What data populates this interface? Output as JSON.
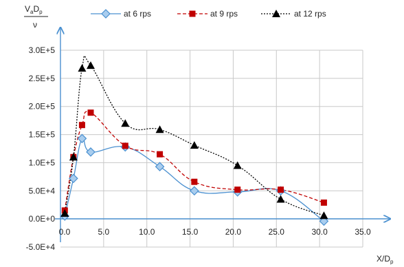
{
  "chart_data": {
    "type": "line",
    "x_axis": {
      "label_main": "X/D",
      "label_sub": "p",
      "ticks": [
        "0.0",
        "5.0",
        "10.0",
        "15.0",
        "20.0",
        "25.0",
        "30.0",
        "35.0"
      ],
      "range": [
        0,
        35
      ]
    },
    "y_axis": {
      "label_num": "V",
      "label_num_sub1": "a",
      "label_num_mid": "D",
      "label_num_sub2": "p",
      "label_den": "ν",
      "ticks": [
        "-5.0E+4",
        "0.0E+0",
        "5.0E+4",
        "1.0E+5",
        "1.5E+5",
        "2.0E+5",
        "2.5E+5",
        "3.0E+5"
      ],
      "range": [
        -50000,
        300000
      ]
    },
    "grid": true,
    "legend_position": "top",
    "series": [
      {
        "name": "at 6 rps",
        "color": "#4a90d0",
        "marker": "diamond",
        "line_style": "solid",
        "x": [
          0.5,
          1.5,
          2.5,
          3.5,
          7.5,
          11.5,
          15.5,
          20.5,
          25.5,
          30.5
        ],
        "y": [
          5000,
          72000,
          143000,
          119000,
          128000,
          93000,
          50000,
          48000,
          50000,
          -4000
        ]
      },
      {
        "name": "at 9 rps",
        "color": "#c00000",
        "marker": "square",
        "line_style": "dashed",
        "x": [
          0.5,
          1.5,
          2.5,
          3.5,
          7.5,
          11.5,
          15.5,
          20.5,
          25.5,
          30.5
        ],
        "y": [
          15000,
          110000,
          167000,
          189000,
          130000,
          115000,
          66000,
          52000,
          52000,
          29000
        ]
      },
      {
        "name": "at 12 rps",
        "color": "#000000",
        "marker": "triangle",
        "line_style": "dotted",
        "x": [
          0.5,
          1.5,
          2.5,
          3.5,
          7.5,
          11.5,
          15.5,
          20.5,
          25.5,
          30.5
        ],
        "y": [
          10000,
          110000,
          268000,
          273000,
          170000,
          159000,
          131000,
          95000,
          35000,
          6000
        ]
      }
    ]
  }
}
